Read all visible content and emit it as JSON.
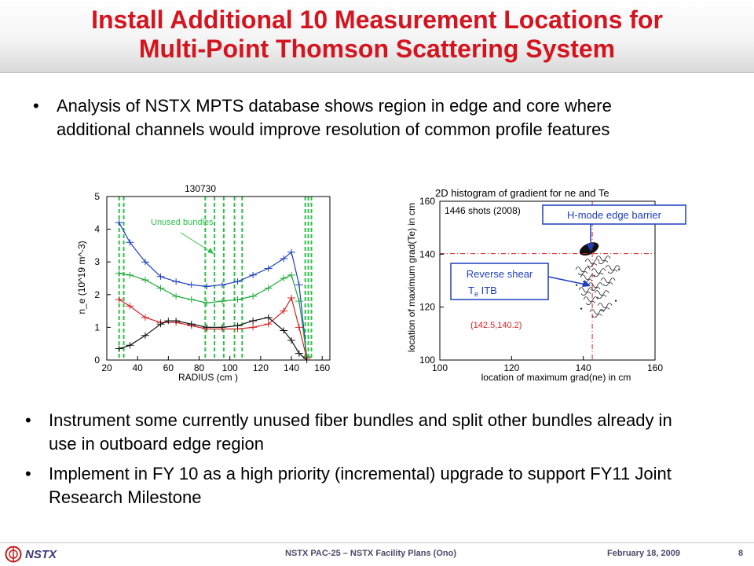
{
  "slide": {
    "title_line1": "Install Additional 10 Measurement Locations for",
    "title_line2": "Multi-Point Thomson Scattering System",
    "bullet1": "Analysis of NSTX MPTS database shows region in edge and core where additional channels would improve resolution of common profile features",
    "bullet2": "Instrument some currently unused fiber bundles and split other bundles already in use in outboard edge region",
    "bullet3": "Implement in FY 10 as a high priority (incremental) upgrade to support FY11 Joint Research Milestone",
    "footer_brand": "NSTX",
    "footer_center": "NSTX PAC-25 – NSTX Facility Plans (Ono)",
    "footer_date": "February 18, 2009",
    "page_number": "8",
    "colors": {
      "title": "#d4141f",
      "footer_text": "#4a4a6a"
    }
  },
  "chart_data": [
    {
      "type": "line",
      "title": "130730",
      "xlabel": "RADIUS (cm )",
      "ylabel": "n_e (10^19 m^-3)",
      "xlim": [
        20,
        165
      ],
      "ylim": [
        0,
        5
      ],
      "xticks": [
        20,
        40,
        60,
        80,
        100,
        120,
        140,
        160
      ],
      "yticks": [
        0,
        1,
        2,
        3,
        4,
        5
      ],
      "annotation": "Unused bundles",
      "unused_bundle_lines_x": [
        28,
        31,
        84,
        90,
        96,
        103,
        108,
        149,
        151,
        153
      ],
      "series": [
        {
          "color": "#1f3fbf",
          "x": [
            28,
            35,
            45,
            55,
            65,
            75,
            85,
            95,
            105,
            115,
            125,
            135,
            140,
            145,
            150
          ],
          "values": [
            4.2,
            3.6,
            3.0,
            2.55,
            2.4,
            2.3,
            2.25,
            2.3,
            2.4,
            2.6,
            2.8,
            3.1,
            3.3,
            2.3,
            0.1
          ]
        },
        {
          "color": "#1faa3a",
          "x": [
            28,
            35,
            45,
            55,
            65,
            75,
            85,
            95,
            105,
            115,
            125,
            135,
            140,
            145,
            150
          ],
          "values": [
            2.65,
            2.6,
            2.45,
            2.2,
            1.95,
            1.85,
            1.75,
            1.8,
            1.85,
            1.95,
            2.2,
            2.5,
            2.6,
            1.8,
            0.1
          ]
        },
        {
          "color": "#d62020",
          "x": [
            28,
            35,
            45,
            55,
            65,
            75,
            85,
            95,
            105,
            115,
            125,
            135,
            140,
            145,
            150
          ],
          "values": [
            1.85,
            1.65,
            1.3,
            1.15,
            1.15,
            1.05,
            0.95,
            0.95,
            0.95,
            1.0,
            1.1,
            1.5,
            1.9,
            1.0,
            0.05
          ]
        },
        {
          "color": "#111111",
          "x": [
            28,
            35,
            45,
            55,
            60,
            65,
            75,
            85,
            95,
            105,
            115,
            125,
            135,
            140,
            145,
            150
          ],
          "values": [
            0.35,
            0.45,
            0.75,
            1.1,
            1.2,
            1.2,
            1.1,
            1.0,
            1.0,
            1.05,
            1.2,
            1.3,
            0.9,
            0.6,
            0.2,
            0.0
          ]
        }
      ]
    },
    {
      "type": "heatmap",
      "title": "2D histogram of gradient for ne and Te",
      "subtitle": "1446 shots (2008)",
      "xlabel": "location of maximum grad(ne) in cm",
      "ylabel": "location of maximum grad(Te) in cm",
      "xlim": [
        100,
        160
      ],
      "ylim": [
        100,
        160
      ],
      "xticks": [
        100,
        120,
        140,
        160
      ],
      "yticks": [
        100,
        120,
        140,
        160
      ],
      "peak": [
        142.5,
        140.2
      ],
      "peak_label": "(142.5,140.2)",
      "callout_hmode": "H-mode edge barrier",
      "callout_reverse_line1": "Reverse shear",
      "callout_reverse_line2a": "T",
      "callout_reverse_sub": "e",
      "callout_reverse_line2b": " ITB"
    }
  ]
}
